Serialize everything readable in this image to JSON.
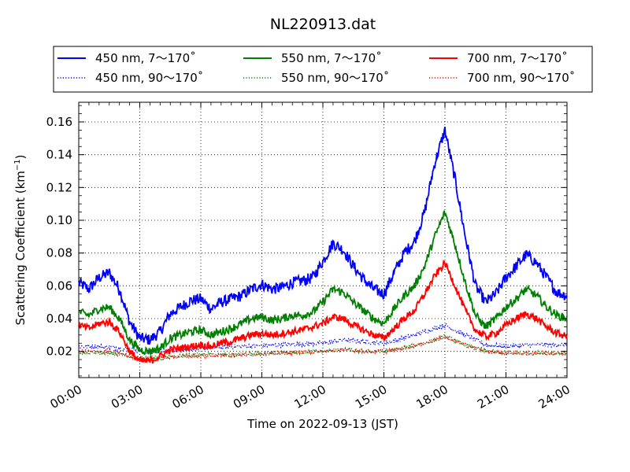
{
  "chart_data": {
    "type": "line",
    "title": "NL220913.dat",
    "xlabel": "Time on 2022-09-13 (JST)",
    "ylabel_main": "Scattering Coefficient (km",
    "ylabel_exp": "−1",
    "ylabel_close": ")",
    "xlim": [
      0,
      24
    ],
    "ylim": [
      0.004,
      0.172
    ],
    "grid": true,
    "legend_position": "top",
    "x_ticks": [
      0,
      3,
      6,
      9,
      12,
      15,
      18,
      21,
      24
    ],
    "x_tick_labels": [
      "00:00",
      "03:00",
      "06:00",
      "09:00",
      "12:00",
      "15:00",
      "18:00",
      "21:00",
      "24:00"
    ],
    "y_ticks": [
      0.02,
      0.04,
      0.06,
      0.08,
      0.1,
      0.12,
      0.14,
      0.16
    ],
    "y_tick_labels": [
      "0.02",
      "0.04",
      "0.06",
      "0.08",
      "0.10",
      "0.12",
      "0.14",
      "0.16"
    ],
    "series": [
      {
        "name": "450 nm, 7～170˚",
        "color": "#0000ff",
        "style": "solid",
        "noise": 0.0035,
        "x": [
          0,
          0.5,
          1,
          1.5,
          2,
          2.5,
          3,
          3.5,
          4,
          4.5,
          5,
          5.5,
          6,
          6.5,
          7,
          7.5,
          8,
          8.5,
          9,
          9.5,
          10,
          10.5,
          11,
          11.5,
          12,
          12.5,
          13,
          13.5,
          14,
          14.5,
          15,
          15.5,
          16,
          16.5,
          17,
          17.5,
          18,
          18.5,
          19,
          19.5,
          20,
          20.5,
          21,
          21.5,
          22,
          22.5,
          23,
          23.5,
          24
        ],
        "y": [
          0.062,
          0.058,
          0.065,
          0.068,
          0.058,
          0.038,
          0.028,
          0.027,
          0.032,
          0.043,
          0.047,
          0.051,
          0.052,
          0.046,
          0.05,
          0.052,
          0.054,
          0.058,
          0.061,
          0.058,
          0.059,
          0.062,
          0.063,
          0.065,
          0.075,
          0.086,
          0.082,
          0.072,
          0.064,
          0.058,
          0.055,
          0.068,
          0.08,
          0.087,
          0.105,
          0.135,
          0.155,
          0.125,
          0.09,
          0.06,
          0.05,
          0.055,
          0.065,
          0.072,
          0.079,
          0.074,
          0.065,
          0.056,
          0.054
        ]
      },
      {
        "name": "450 nm, 90～170˚",
        "color": "#0000ff",
        "style": "dotted",
        "noise": 0.0015,
        "x": [
          0,
          1,
          2,
          3,
          4,
          5,
          6,
          8,
          10,
          12,
          13,
          14,
          15,
          16,
          17,
          18,
          19,
          20,
          21,
          22,
          23,
          24
        ],
        "y": [
          0.023,
          0.023,
          0.022,
          0.02,
          0.02,
          0.021,
          0.022,
          0.023,
          0.024,
          0.025,
          0.027,
          0.026,
          0.025,
          0.028,
          0.032,
          0.036,
          0.03,
          0.024,
          0.023,
          0.024,
          0.024,
          0.024
        ]
      },
      {
        "name": "550 nm, 7～170˚",
        "color": "#008000",
        "style": "solid",
        "noise": 0.0025,
        "x": [
          0,
          0.5,
          1,
          1.5,
          2,
          2.5,
          3,
          3.5,
          4,
          4.5,
          5,
          5.5,
          6,
          6.5,
          7,
          7.5,
          8,
          8.5,
          9,
          9.5,
          10,
          10.5,
          11,
          11.5,
          12,
          12.5,
          13,
          13.5,
          14,
          14.5,
          15,
          15.5,
          16,
          16.5,
          17,
          17.5,
          18,
          18.5,
          19,
          19.5,
          20,
          20.5,
          21,
          21.5,
          22,
          22.5,
          23,
          23.5,
          24
        ],
        "y": [
          0.044,
          0.042,
          0.046,
          0.047,
          0.04,
          0.027,
          0.021,
          0.02,
          0.022,
          0.028,
          0.03,
          0.032,
          0.033,
          0.03,
          0.032,
          0.034,
          0.037,
          0.04,
          0.041,
          0.039,
          0.04,
          0.042,
          0.042,
          0.044,
          0.05,
          0.058,
          0.056,
          0.05,
          0.045,
          0.04,
          0.037,
          0.046,
          0.054,
          0.06,
          0.072,
          0.09,
          0.105,
          0.085,
          0.062,
          0.042,
          0.035,
          0.04,
          0.047,
          0.052,
          0.058,
          0.054,
          0.047,
          0.042,
          0.04
        ]
      },
      {
        "name": "550 nm, 90～170˚",
        "color": "#008000",
        "style": "dotted",
        "noise": 0.0013,
        "x": [
          0,
          1,
          2,
          3,
          4,
          5,
          6,
          8,
          10,
          12,
          13,
          14,
          15,
          16,
          17,
          18,
          19,
          20,
          21,
          22,
          23,
          24
        ],
        "y": [
          0.019,
          0.019,
          0.018,
          0.016,
          0.016,
          0.017,
          0.018,
          0.018,
          0.019,
          0.02,
          0.021,
          0.02,
          0.02,
          0.022,
          0.025,
          0.029,
          0.024,
          0.02,
          0.019,
          0.019,
          0.019,
          0.019
        ]
      },
      {
        "name": "700 nm, 7～170˚",
        "color": "#ff0000",
        "style": "solid",
        "noise": 0.0022,
        "x": [
          0,
          0.5,
          1,
          1.5,
          2,
          2.5,
          3,
          3.5,
          4,
          4.5,
          5,
          5.5,
          6,
          6.5,
          7,
          7.5,
          8,
          8.5,
          9,
          9.5,
          10,
          10.5,
          11,
          11.5,
          12,
          12.5,
          13,
          13.5,
          14,
          14.5,
          15,
          15.5,
          16,
          16.5,
          17,
          17.5,
          18,
          18.5,
          19,
          19.5,
          20,
          20.5,
          21,
          21.5,
          22,
          22.5,
          23,
          23.5,
          24
        ],
        "y": [
          0.036,
          0.034,
          0.037,
          0.038,
          0.032,
          0.02,
          0.014,
          0.014,
          0.017,
          0.021,
          0.022,
          0.023,
          0.024,
          0.023,
          0.025,
          0.026,
          0.028,
          0.03,
          0.031,
          0.03,
          0.031,
          0.032,
          0.033,
          0.035,
          0.037,
          0.041,
          0.04,
          0.036,
          0.033,
          0.03,
          0.028,
          0.034,
          0.04,
          0.045,
          0.055,
          0.066,
          0.074,
          0.06,
          0.045,
          0.033,
          0.029,
          0.031,
          0.036,
          0.04,
          0.043,
          0.04,
          0.035,
          0.031,
          0.029
        ]
      },
      {
        "name": "700 nm, 90～170˚",
        "color": "#ff0000",
        "style": "dotted",
        "noise": 0.0012,
        "x": [
          0,
          1,
          2,
          3,
          4,
          5,
          6,
          8,
          10,
          12,
          13,
          14,
          15,
          16,
          17,
          18,
          19,
          20,
          21,
          22,
          23,
          24
        ],
        "y": [
          0.02,
          0.02,
          0.019,
          0.015,
          0.016,
          0.017,
          0.017,
          0.018,
          0.019,
          0.02,
          0.021,
          0.02,
          0.02,
          0.022,
          0.025,
          0.029,
          0.024,
          0.02,
          0.019,
          0.019,
          0.019,
          0.019
        ]
      }
    ]
  }
}
